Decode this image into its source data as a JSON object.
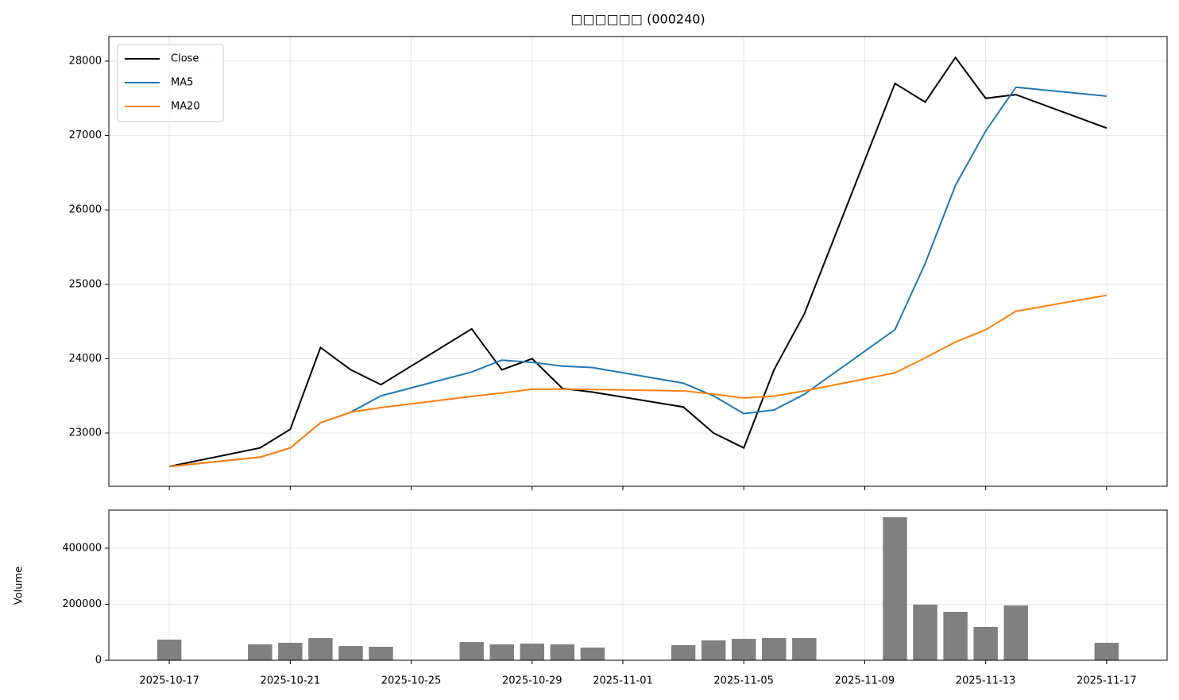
{
  "chart_data": [
    {
      "type": "line",
      "title": "□□□□□□ (000240)",
      "x": [
        "2025-10-17",
        "2025-10-20",
        "2025-10-21",
        "2025-10-22",
        "2025-10-23",
        "2025-10-24",
        "2025-10-27",
        "2025-10-28",
        "2025-10-29",
        "2025-10-30",
        "2025-10-31",
        "2025-11-03",
        "2025-11-04",
        "2025-11-05",
        "2025-11-06",
        "2025-11-07",
        "2025-11-10",
        "2025-11-11",
        "2025-11-12",
        "2025-11-13",
        "2025-11-14",
        "2025-11-17"
      ],
      "series": [
        {
          "name": "Close",
          "color": "#000000",
          "values": [
            22550,
            22800,
            23050,
            24150,
            23850,
            23650,
            24400,
            23850,
            24000,
            23600,
            23550,
            23350,
            23000,
            22800,
            23850,
            24600,
            27700,
            27450,
            28050,
            27500,
            27550,
            27100
          ]
        },
        {
          "name": "MA5",
          "color": "#1f77b4",
          "values": [
            22550,
            22675,
            22800,
            23137.5,
            23280,
            23500,
            23820,
            23980,
            23950,
            23900,
            23880,
            23670,
            23500,
            23260,
            23310,
            23520,
            24390,
            25280,
            26330,
            27060,
            27650,
            27530
          ]
        },
        {
          "name": "MA20",
          "color": "#ff7f0e",
          "values": [
            22550,
            22675,
            22800,
            23137.5,
            23280,
            23341.7,
            23492.9,
            23537.5,
            23588.9,
            23590,
            23586.4,
            23566.7,
            23523.1,
            23471.4,
            23496.7,
            23565.6,
            23808.8,
            24011.1,
            24223.7,
            24387.5,
            24637.5,
            24852.5
          ]
        }
      ],
      "xlim": [
        "2025-10-15",
        "2025-11-19"
      ],
      "xticks": [
        "2025-10-17",
        "2025-10-21",
        "2025-10-25",
        "2025-10-29",
        "2025-11-01",
        "2025-11-05",
        "2025-11-09",
        "2025-11-13",
        "2025-11-17"
      ],
      "ylim": [
        22284,
        28331
      ],
      "yticks": [
        23000,
        24000,
        25000,
        26000,
        27000,
        28000
      ],
      "grid": true,
      "legend": "upper-left"
    },
    {
      "type": "bar",
      "ylabel": "Volume",
      "color": "#808080",
      "x": [
        "2025-10-17",
        "2025-10-20",
        "2025-10-21",
        "2025-10-22",
        "2025-10-23",
        "2025-10-24",
        "2025-10-27",
        "2025-10-28",
        "2025-10-29",
        "2025-10-30",
        "2025-10-31",
        "2025-11-03",
        "2025-11-04",
        "2025-11-05",
        "2025-11-06",
        "2025-11-07",
        "2025-11-10",
        "2025-11-11",
        "2025-11-12",
        "2025-11-13",
        "2025-11-14",
        "2025-11-17"
      ],
      "values": [
        73800,
        56700,
        62400,
        79400,
        51000,
        48200,
        65000,
        56700,
        59600,
        56700,
        45400,
        53900,
        70900,
        76600,
        79400,
        79400,
        510600,
        198600,
        173000,
        119100,
        195700,
        62400
      ],
      "xlim": [
        "2025-10-15",
        "2025-11-19"
      ],
      "xticks": [
        "2025-10-17",
        "2025-10-21",
        "2025-10-25",
        "2025-10-29",
        "2025-11-01",
        "2025-11-05",
        "2025-11-09",
        "2025-11-13",
        "2025-11-17"
      ],
      "ylim": [
        0,
        536000
      ],
      "yticks": [
        0,
        200000,
        400000
      ],
      "grid": true
    }
  ]
}
